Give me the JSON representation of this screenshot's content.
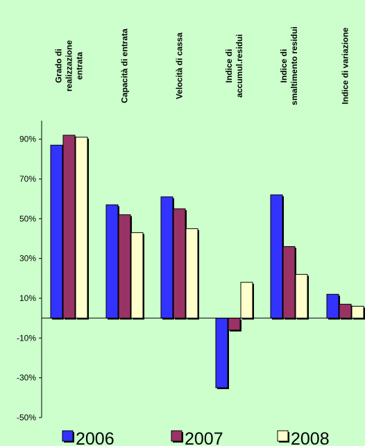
{
  "chart_data": {
    "type": "bar",
    "categories": [
      [
        "Grado di",
        "realizzazione",
        "entrata"
      ],
      [
        "Capacità di entrata"
      ],
      [
        "Velocità di cassa"
      ],
      [
        "Indice di",
        "accumul.residui"
      ],
      [
        "Indice di",
        "smaltimento residui"
      ],
      [
        "Indice di variazione"
      ]
    ],
    "series": [
      {
        "name": "2006",
        "color": "#3333ff",
        "values": [
          87,
          57,
          61,
          -35,
          62,
          12
        ]
      },
      {
        "name": "2007",
        "color": "#993366",
        "values": [
          92,
          52,
          55,
          -6,
          36,
          7
        ]
      },
      {
        "name": "2008",
        "color": "#ffffcc",
        "values": [
          91,
          43,
          45,
          18,
          22,
          6
        ]
      }
    ],
    "ylim": [
      -50,
      100
    ],
    "yticks": [
      90,
      70,
      50,
      30,
      10,
      -10,
      -30,
      -50
    ],
    "ytick_labels": [
      "90%",
      "70%",
      "50%",
      "30%",
      "10%",
      "-10%",
      "-30%",
      "-50%"
    ],
    "grid": false,
    "legend_position": "bottom"
  }
}
